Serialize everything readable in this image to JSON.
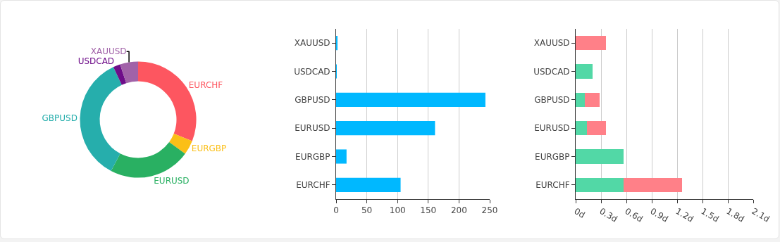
{
  "chart_data": [
    {
      "type": "donut",
      "categories": [
        "EURCHF",
        "EURGBP",
        "EURUSD",
        "GBPUSD",
        "USDCAD",
        "XAUUSD"
      ],
      "values": [
        31,
        4,
        22.7,
        35.3,
        2,
        5
      ],
      "colors": [
        "#fd5660",
        "#fbbf17",
        "#29b062",
        "#26aeac",
        "#6e0d89",
        "#a162a8"
      ],
      "legend": false
    },
    {
      "type": "bar",
      "orientation": "horizontal",
      "categories": [
        "XAUUSD",
        "USDCAD",
        "GBPUSD",
        "EURUSD",
        "EURGBP",
        "EURCHF"
      ],
      "values": [
        2,
        0.5,
        243,
        161,
        17,
        105
      ],
      "color": "#00b8ff",
      "xlim": [
        0,
        250
      ],
      "xticks": [
        0,
        50,
        100,
        150,
        200,
        250
      ],
      "grid": "x",
      "legend": false
    },
    {
      "type": "bar",
      "orientation": "horizontal",
      "stacked": true,
      "categories": [
        "XAUUSD",
        "USDCAD",
        "GBPUSD",
        "EURUSD",
        "EURGBP",
        "EURCHF"
      ],
      "series": [
        {
          "color": "#52d8a6",
          "values": [
            0,
            0.2,
            0.11,
            0.13,
            0.57,
            0.57
          ]
        },
        {
          "color": "#ff8088",
          "values": [
            0.36,
            0,
            0.17,
            0.23,
            0,
            0.69
          ]
        }
      ],
      "xlim": [
        0,
        2.1
      ],
      "xticks": [
        {
          "value": 0,
          "label": "0d"
        },
        {
          "value": 0.3,
          "label": "0.3d"
        },
        {
          "value": 0.6,
          "label": "0.6d"
        },
        {
          "value": 0.9,
          "label": "0.9d"
        },
        {
          "value": 1.2,
          "label": "1.2d"
        },
        {
          "value": 1.5,
          "label": "1.5d"
        },
        {
          "value": 1.8,
          "label": "1.8d"
        },
        {
          "value": 2.1,
          "label": "2.1d"
        }
      ],
      "grid": "x",
      "legend": false
    }
  ]
}
